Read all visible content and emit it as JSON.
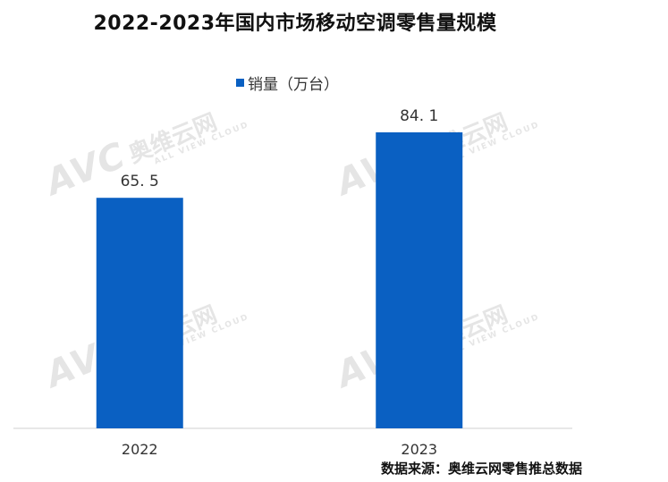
{
  "chart_data": {
    "type": "bar",
    "title": "2022-2023年国内市场移动空调零售量规模",
    "categories": [
      "2022",
      "2023"
    ],
    "series": [
      {
        "name": "销量（万台）",
        "values": [
          65.5,
          84.1
        ],
        "labels": [
          "65. 5",
          "84. 1"
        ]
      }
    ],
    "ylim": [
      0,
      100
    ],
    "grid": false,
    "legend_position": "top-center",
    "bar_color": "#0a60c2"
  },
  "source": "数据来源：奥维云网零售推总数据",
  "watermark": {
    "brand": "AVC",
    "brand_cn": "奥维云网",
    "tagline": "ALL VIEW CLOUD"
  }
}
